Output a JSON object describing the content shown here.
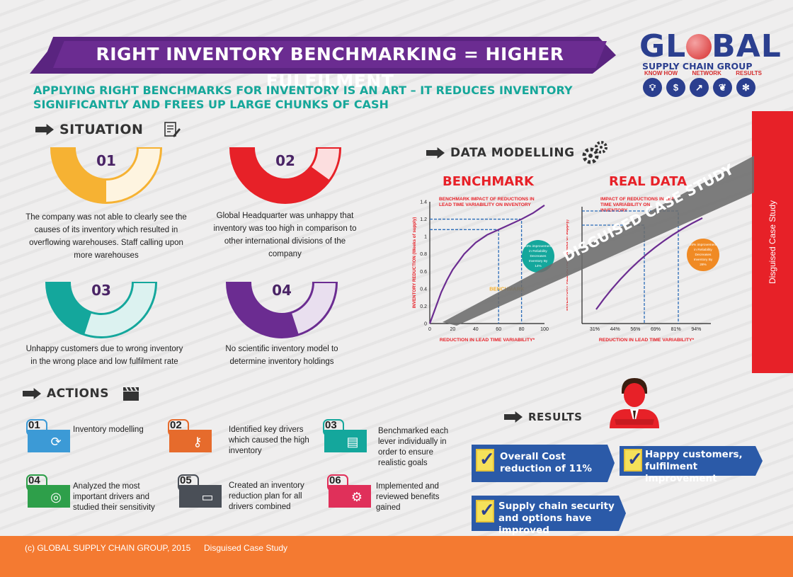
{
  "header": {
    "title": "RIGHT INVENTORY BENCHMARKING = HIGHER FULFILMENT",
    "subtitle": "APPLYING RIGHT BENCHMARKS FOR INVENTORY IS AN ART – IT REDUCES INVENTORY SIGNIFICANTLY AND FREES UP LARGE CHUNKS OF CASH"
  },
  "logo": {
    "word_start": "GL",
    "word_end": "BAL",
    "sub": "SUPPLY CHAIN GROUP",
    "tags": [
      "KNOW HOW",
      "NETWORK",
      "RESULTS"
    ],
    "icons": [
      "lightbulb-icon",
      "dollar-icon",
      "growth-chart-icon",
      "leaf-icon",
      "network-icon"
    ]
  },
  "side_panel": {
    "label": "Disguised Case Study",
    "color": "#e72128"
  },
  "situation": {
    "heading": "SITUATION",
    "items": [
      {
        "num": "01",
        "color": "#f6b233",
        "fill": 0.5,
        "text": "The company was not able to clearly see the causes of its inventory which resulted in overflowing warehouses. Staff calling upon more warehouses"
      },
      {
        "num": "02",
        "color": "#e72128",
        "fill": 0.8,
        "text": "Global Headquarter was unhappy  that inventory was too high in comparison to other international divisions of the company"
      },
      {
        "num": "03",
        "color": "#14a79c",
        "fill": 0.4,
        "text": "Unhappy customers due to wrong inventory in the wrong place and low fulfilment rate"
      },
      {
        "num": "04",
        "color": "#6b2c91",
        "fill": 0.6,
        "text": "No scientific inventory model to determine inventory holdings"
      }
    ]
  },
  "actions": {
    "heading": "ACTIONS",
    "items": [
      {
        "num": "01",
        "color": "#3c9ad6",
        "icon": "refresh-icon",
        "text": "Inventory modelling"
      },
      {
        "num": "02",
        "color": "#e66b2c",
        "icon": "key-icon",
        "text": "Identified key drivers which caused the high inventory"
      },
      {
        "num": "03",
        "color": "#14a79c",
        "icon": "document-icon",
        "text": "Benchmarked each lever individually in order to ensure realistic goals"
      },
      {
        "num": "04",
        "color": "#2e9f4a",
        "icon": "target-icon",
        "text": "Analyzed the most important drivers and studied their sensitivity"
      },
      {
        "num": "05",
        "color": "#4a4f57",
        "icon": "chat-icon",
        "text": "Created an inventory reduction plan for all drivers combined"
      },
      {
        "num": "06",
        "color": "#e0305a",
        "icon": "gears-icon",
        "text": "Implemented and reviewed benefits gained"
      }
    ]
  },
  "data_modelling": {
    "heading": "DATA MODELLING",
    "watermark": "DISGUISED CASE STUDY"
  },
  "chart_data": [
    {
      "type": "line",
      "title": "BENCHMARK",
      "subtitle": "BENCHMARK  IMPACT OF REDUCTIONS IN LEAD TIME VARIABILITY ON INVENTORY",
      "xlabel": "REDUCTION IN LEAD TIME VARIABILITY* (Percent)",
      "ylabel": "INVENTORY REDUCTION (Weeks of supply)",
      "x_ticks": [
        "0",
        "20",
        "40",
        "60",
        "80",
        "100"
      ],
      "y_ticks": [
        "0",
        "0.2",
        "0.4",
        "0.6",
        "0.8",
        "1",
        "1.2",
        "1.4"
      ],
      "xlim": [
        0,
        100
      ],
      "ylim": [
        0,
        1.4
      ],
      "series": [
        {
          "x": [
            0,
            5,
            10,
            15,
            20,
            30,
            40,
            50,
            60,
            70,
            80,
            90,
            100
          ],
          "y": [
            0,
            0.18,
            0.36,
            0.5,
            0.62,
            0.8,
            0.93,
            1.02,
            1.08,
            1.14,
            1.2,
            1.27,
            1.36
          ]
        }
      ],
      "annotation_label": "BENCHMARK",
      "callout": "28% improvement in Reliability Decreases Inventory By 14%",
      "callout_color": "#14a79c"
    },
    {
      "type": "line",
      "title": "REAL DATA",
      "subtitle": "IMPACT OF REDUCTIONS IN LEAD TIME VARIABILITY ON INVENTORY",
      "xlabel": "REDUCTION IN LEAD TIME VARIABILITY* (Percent)",
      "ylabel": "INVENTORY REDUCTION (Weeks of supply)",
      "x_ticks": [
        "31%",
        "44%",
        "56%",
        "69%",
        "81%",
        "94%"
      ],
      "callout": "26% improvement in Reliability Decreases Inventory By 28%",
      "callout_color": "#f08a24"
    }
  ],
  "results": {
    "heading": "RESULTS",
    "items": [
      {
        "text": "Overall Cost reduction of 11%"
      },
      {
        "text": "Happy customers, fulfilment improvement"
      },
      {
        "text": "Supply chain security and options have improved"
      }
    ],
    "box_color": "#2b5aa8"
  },
  "footer": {
    "copyright": "(c) GLOBAL SUPPLY CHAIN GROUP, 2015",
    "label": "Disguised Case Study"
  }
}
